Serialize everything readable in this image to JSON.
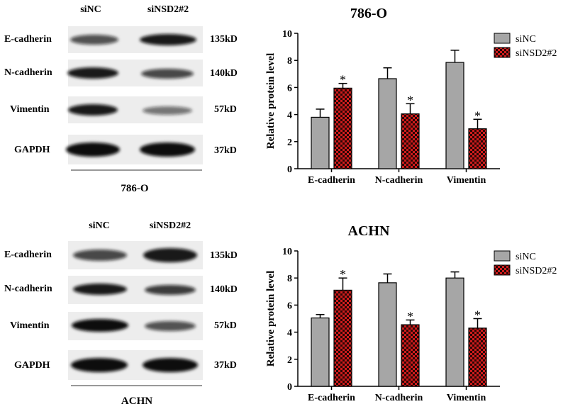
{
  "blots": [
    {
      "group": "786-O",
      "lanes": [
        "siNC",
        "siNSD2#2"
      ],
      "rows": [
        {
          "protein": "E-cadherin",
          "size": "135kD",
          "intensity": [
            0.7,
            0.95
          ]
        },
        {
          "protein": "N-cadherin",
          "size": "140kD",
          "intensity": [
            0.95,
            0.75
          ]
        },
        {
          "protein": "Vimentin",
          "size": "57kD",
          "intensity": [
            0.95,
            0.55
          ]
        },
        {
          "protein": "GAPDH",
          "size": "37kD",
          "intensity": [
            1.0,
            1.0
          ]
        }
      ]
    },
    {
      "group": "ACHN",
      "lanes": [
        "siNC",
        "siNSD2#2"
      ],
      "rows": [
        {
          "protein": "E-cadherin",
          "size": "135kD",
          "intensity": [
            0.75,
            0.95
          ]
        },
        {
          "protein": "N-cadherin",
          "size": "140kD",
          "intensity": [
            0.95,
            0.8
          ]
        },
        {
          "protein": "Vimentin",
          "size": "57kD",
          "intensity": [
            1.0,
            0.7
          ]
        },
        {
          "protein": "GAPDH",
          "size": "37kD",
          "intensity": [
            1.0,
            1.0
          ]
        }
      ]
    }
  ],
  "chart_data": [
    {
      "type": "bar",
      "title": "786-O",
      "xlabel": "",
      "ylabel": "Relative protein level",
      "ylim": [
        0,
        10
      ],
      "yticks": [
        0,
        2,
        4,
        6,
        8,
        10
      ],
      "categories": [
        "E-cadherin",
        "N-cadherin",
        "Vimentin"
      ],
      "series": [
        {
          "name": "siNC",
          "values": [
            3.8,
            6.65,
            7.85
          ],
          "errors": [
            0.6,
            0.8,
            0.9
          ],
          "color": "#a6a6a6",
          "pattern": "solid"
        },
        {
          "name": "siNSD2#2",
          "values": [
            5.95,
            4.05,
            2.95
          ],
          "errors": [
            0.35,
            0.75,
            0.7
          ],
          "color": "#d01c1c",
          "pattern": "checker"
        }
      ],
      "significance": [
        "*",
        "*",
        "*"
      ],
      "legend_position": "top-right"
    },
    {
      "type": "bar",
      "title": "ACHN",
      "xlabel": "",
      "ylabel": "Relative protein level",
      "ylim": [
        0,
        10
      ],
      "yticks": [
        0,
        2,
        4,
        6,
        8,
        10
      ],
      "categories": [
        "E-cadherin",
        "N-cadherin",
        "Vimentin"
      ],
      "series": [
        {
          "name": "siNC",
          "values": [
            5.05,
            7.65,
            8.0
          ],
          "errors": [
            0.25,
            0.65,
            0.45
          ],
          "color": "#a6a6a6",
          "pattern": "solid"
        },
        {
          "name": "siNSD2#2",
          "values": [
            7.1,
            4.55,
            4.3
          ],
          "errors": [
            0.9,
            0.35,
            0.7
          ],
          "color": "#d01c1c",
          "pattern": "checker"
        }
      ],
      "significance": [
        "*",
        "*",
        "*"
      ],
      "legend_position": "top-right"
    }
  ]
}
